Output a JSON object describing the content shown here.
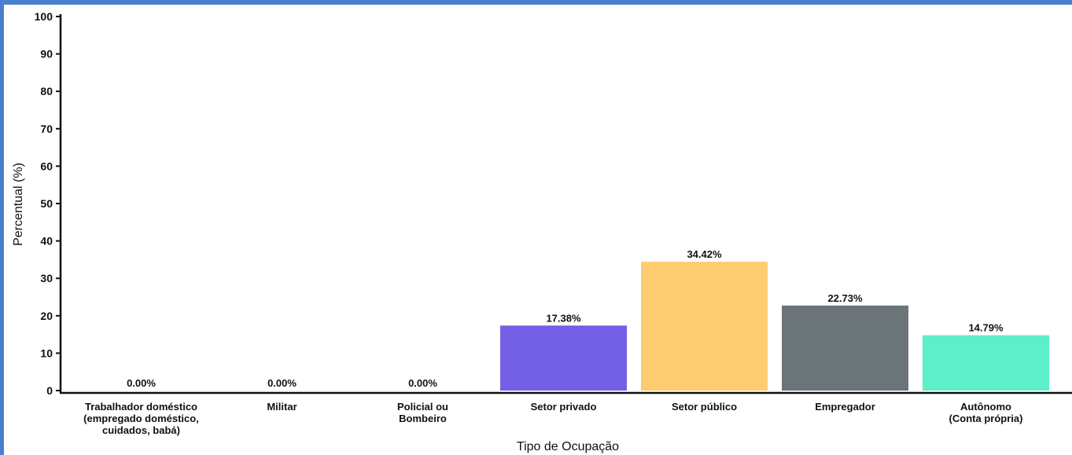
{
  "chart_data": {
    "type": "bar",
    "title": "",
    "xlabel": "Tipo de Ocupação",
    "ylabel": "Percentual (%)",
    "ylim": [
      0,
      100
    ],
    "yticks": [
      0,
      10,
      20,
      30,
      40,
      50,
      60,
      70,
      80,
      90,
      100
    ],
    "grid": false,
    "categories": [
      [
        "Trabalhador doméstico",
        "(empregado doméstico,",
        "cuidados, babá)"
      ],
      [
        "Militar"
      ],
      [
        "Policial ou",
        "Bombeiro"
      ],
      [
        "Setor privado"
      ],
      [
        "Setor público"
      ],
      [
        "Empregador"
      ],
      [
        "Autônomo",
        "(Conta própria)"
      ]
    ],
    "values": [
      0.0,
      0.0,
      0.0,
      17.38,
      34.42,
      22.73,
      14.79
    ],
    "value_labels": [
      "0.00%",
      "0.00%",
      "0.00%",
      "17.38%",
      "34.42%",
      "22.73%",
      "14.79%"
    ],
    "colors": [
      "#7b68ee",
      "#7b68ee",
      "#7b68ee",
      "#7360e6",
      "#fdcb70",
      "#6b7479",
      "#5cefc9"
    ]
  }
}
